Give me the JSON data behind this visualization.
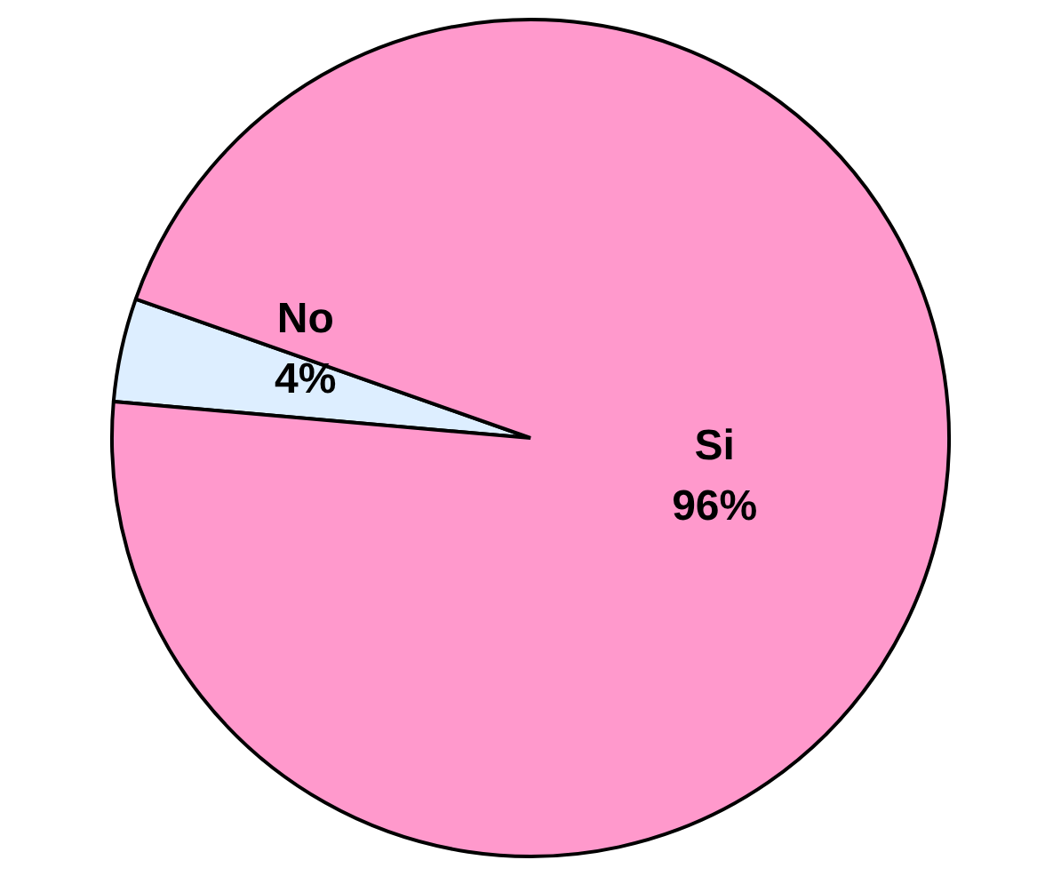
{
  "chart_data": {
    "type": "pie",
    "categories": [
      "No",
      "Si"
    ],
    "values": [
      4,
      96
    ],
    "colors": [
      "#ddeeff",
      "#ff99cc"
    ],
    "value_labels": [
      "4%",
      "96%"
    ],
    "legend": false
  }
}
